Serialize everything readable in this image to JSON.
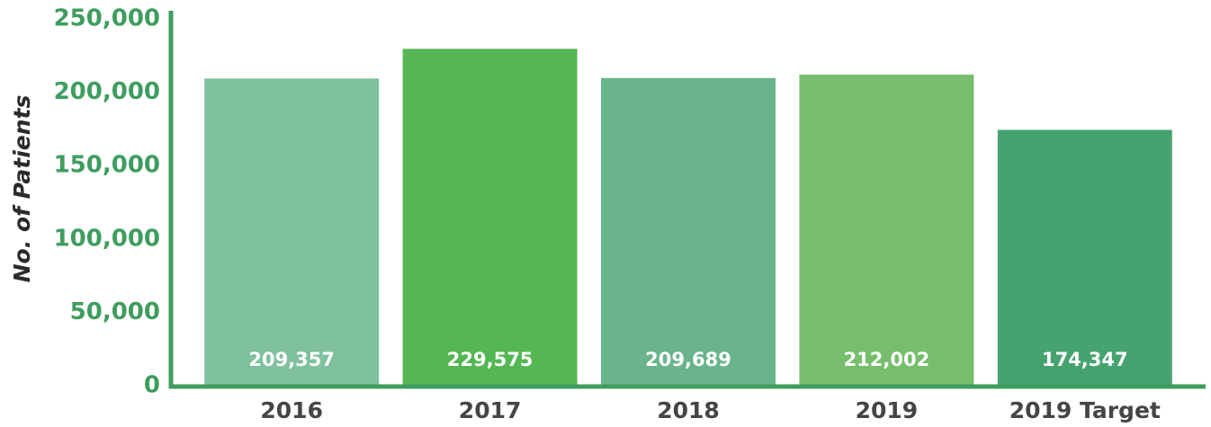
{
  "chart_data": {
    "type": "bar",
    "y_label": "No. of Patients",
    "categories": [
      "2016",
      "2017",
      "2018",
      "2019",
      "2019 Target"
    ],
    "values": [
      209357,
      229575,
      209689,
      212002,
      174347
    ],
    "value_labels": [
      "209,357",
      "229,575",
      "209,689",
      "212,002",
      "174,347"
    ],
    "colors": [
      "#7fc09d",
      "#55b654",
      "#69b48b",
      "#76be6c",
      "#46a36f"
    ],
    "axis_color": "#3f9d5f",
    "ylim": [
      0,
      250000
    ],
    "yticks": [
      0,
      {
        "value": 50000,
        "label": "50,000"
      },
      {
        "value": 100000,
        "label": "100,000"
      },
      {
        "value": 150000,
        "label": "150,000"
      },
      {
        "value": 200000,
        "label": "200,000"
      },
      {
        "value": 250000,
        "label": "250,000"
      }
    ],
    "grid": false
  }
}
